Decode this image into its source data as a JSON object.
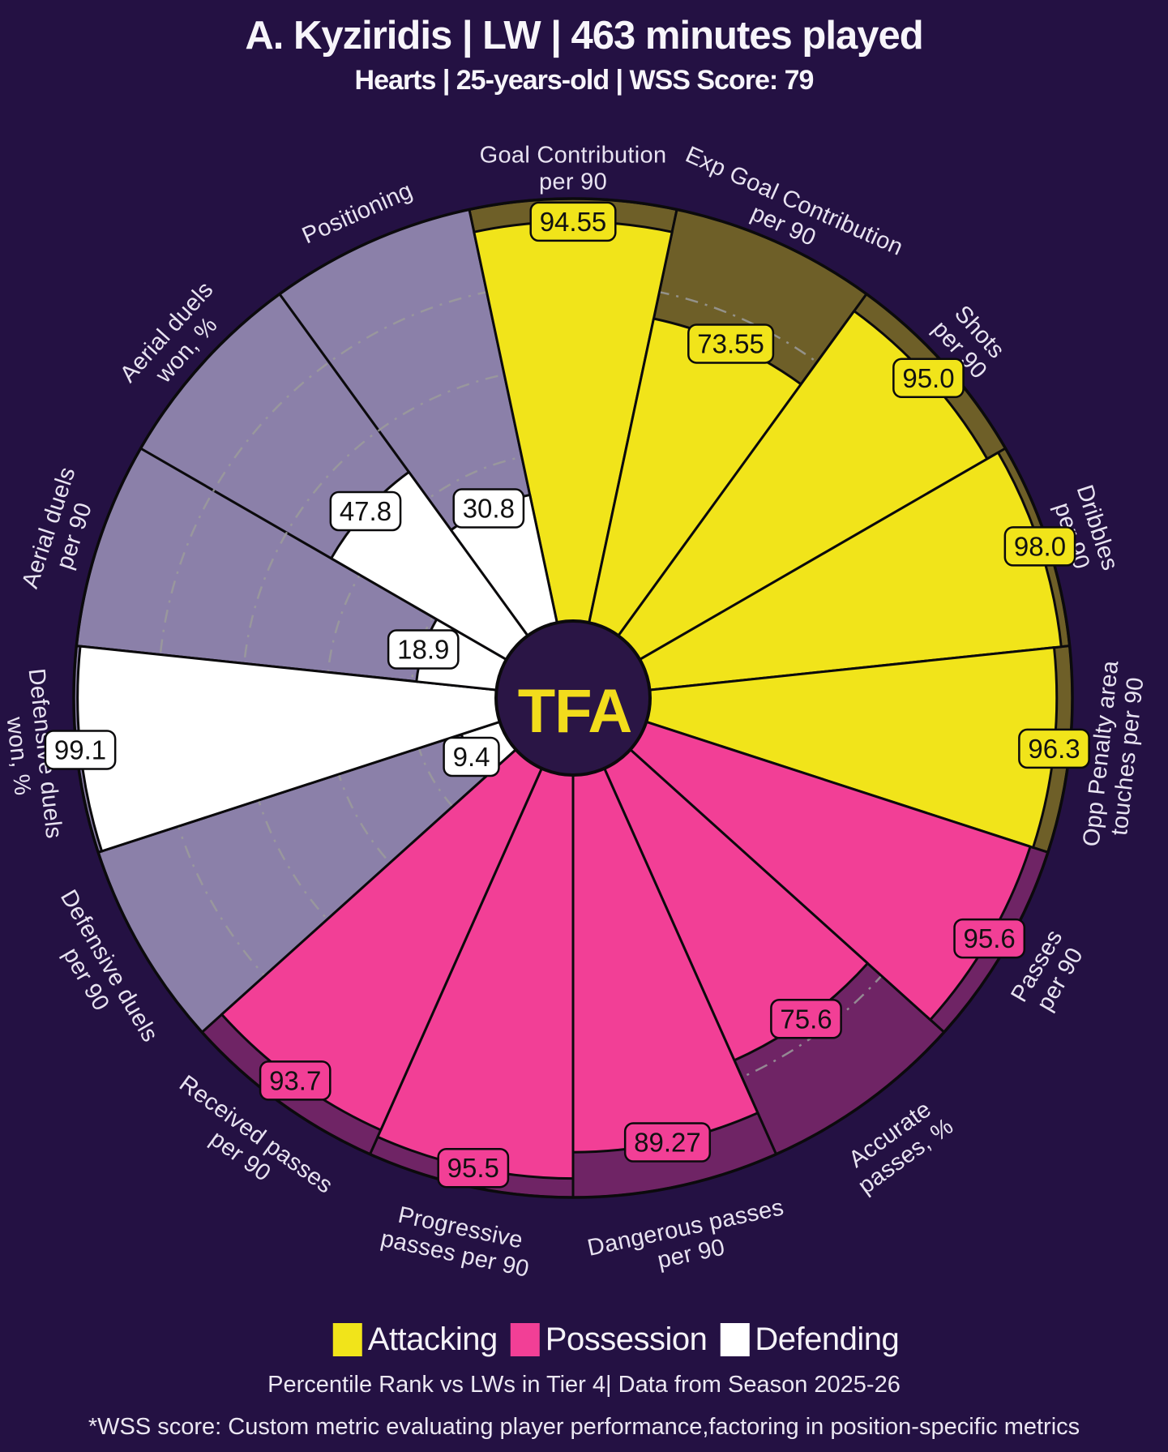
{
  "header": {
    "title": "A. Kyziridis | LW | 463 minutes played",
    "subtitle": "Hearts | 25-years-old | WSS Score: 79"
  },
  "center_logo_text": "TFA",
  "chart_data": {
    "type": "pie",
    "variant": "pizza-percentile-radar",
    "title": "Percentile pizza chart",
    "max": 100,
    "rings": [
      20,
      40,
      60,
      80
    ],
    "start_mid_angle_deg": -90,
    "slice_angle_deg": 24,
    "slices": [
      {
        "name": "Goal Contribution per 90",
        "lines": [
          "Goal Contribution",
          "per 90"
        ],
        "value": 94.55,
        "display": "94.55",
        "group": "attacking"
      },
      {
        "name": "Exp Goal Contribution per 90",
        "lines": [
          "Exp Goal Contribution",
          "per 90"
        ],
        "value": 73.55,
        "display": "73.55",
        "group": "attacking"
      },
      {
        "name": "Shots per 90",
        "lines": [
          "Shots",
          "per 90"
        ],
        "value": 95.0,
        "display": "95.0",
        "group": "attacking"
      },
      {
        "name": "Dribbles per 90",
        "lines": [
          "Dribbles",
          "per 90"
        ],
        "value": 98.0,
        "display": "98.0",
        "group": "attacking"
      },
      {
        "name": "Opp Penalty area touches per 90",
        "lines": [
          "Opp Penalty area",
          "touches per 90"
        ],
        "value": 96.3,
        "display": "96.3",
        "group": "attacking"
      },
      {
        "name": "Passes per 90",
        "lines": [
          "Passes",
          "per 90"
        ],
        "value": 95.6,
        "display": "95.6",
        "group": "possession"
      },
      {
        "name": "Accurate passes, %",
        "lines": [
          "Accurate",
          "passes, %"
        ],
        "value": 75.6,
        "display": "75.6",
        "group": "possession"
      },
      {
        "name": "Dangerous passes per 90",
        "lines": [
          "Dangerous passes",
          "per 90"
        ],
        "value": 89.27,
        "display": "89.27",
        "group": "possession"
      },
      {
        "name": "Progressive passes per 90",
        "lines": [
          "Progressive",
          "passes per 90"
        ],
        "value": 95.5,
        "display": "95.5",
        "group": "possession"
      },
      {
        "name": "Received passes per 90",
        "lines": [
          "Received passes",
          "per 90"
        ],
        "value": 93.7,
        "display": "93.7",
        "group": "possession"
      },
      {
        "name": "Defensive duels per 90",
        "lines": [
          "Defensive duels",
          "per 90"
        ],
        "value": 9.4,
        "display": "9.4",
        "group": "defending"
      },
      {
        "name": "Defensive duels won, %",
        "lines": [
          "Defensive duels",
          "won, %"
        ],
        "value": 99.1,
        "display": "99.1",
        "group": "defending"
      },
      {
        "name": "Aerial duels per 90",
        "lines": [
          "Aerial duels",
          "per 90"
        ],
        "value": 18.9,
        "display": "18.9",
        "group": "defending"
      },
      {
        "name": "Aerial duels won, %",
        "lines": [
          "Aerial duels",
          "won, %"
        ],
        "value": 47.8,
        "display": "47.8",
        "group": "defending"
      },
      {
        "name": "Positioning",
        "lines": [
          "Positioning"
        ],
        "value": 30.8,
        "display": "30.8",
        "group": "defending"
      }
    ],
    "group_styles": {
      "attacking": {
        "color": "#F1E41A",
        "remainder_color": "#6E5F28"
      },
      "possession": {
        "color": "#F23F96",
        "remainder_color": "#6F2465"
      },
      "defending": {
        "color": "#FFFFFF",
        "remainder_color": "#8B80A9"
      }
    },
    "legend_position": "bottom"
  },
  "legend": {
    "items": [
      {
        "label": "Attacking",
        "group": "attacking"
      },
      {
        "label": "Possession",
        "group": "possession"
      },
      {
        "label": "Defending",
        "group": "defending"
      }
    ]
  },
  "footer": {
    "line1": "Percentile Rank vs LWs in Tier 4| Data from Season 2025-26",
    "line2": "*WSS score: Custom metric evaluating player performance,factoring in position-specific metrics"
  },
  "colors": {
    "background": "#241143",
    "center_circle": "#2A1545",
    "logo": "#F2DC1C",
    "slice_label": "#E8E3F1",
    "grid": "#9B9B9B",
    "outline": "#0B0A0C",
    "title": "#F7F5FA"
  }
}
